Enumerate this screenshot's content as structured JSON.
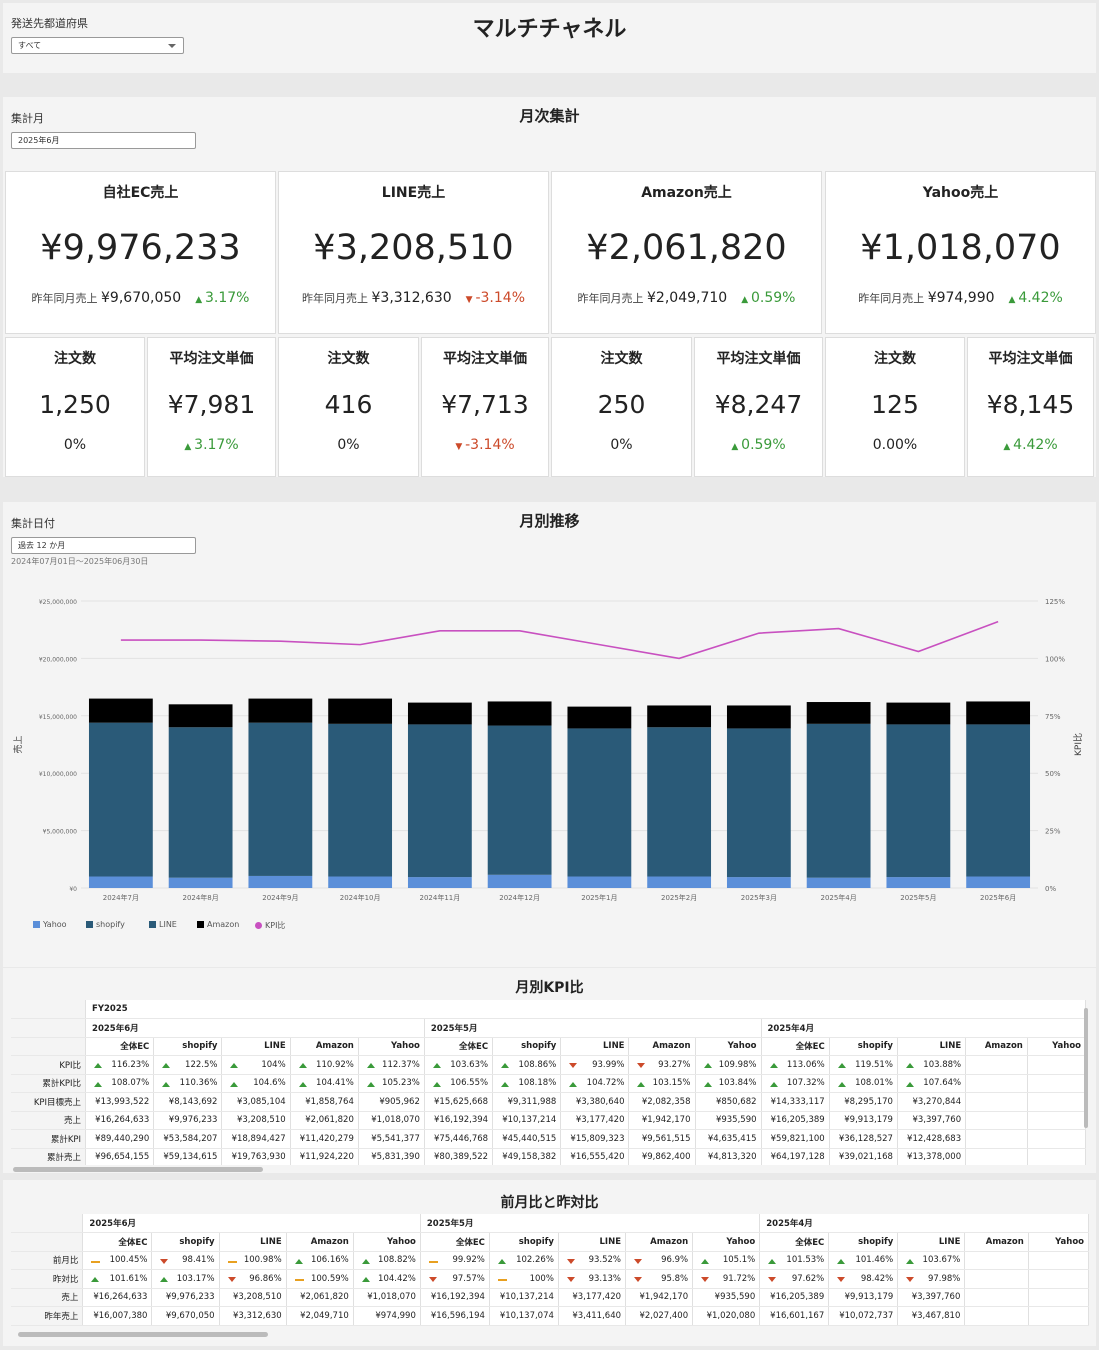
{
  "header": {
    "prefecture_label": "発送先都道府県",
    "prefecture_value": "すべて",
    "title": "マルチチャネル"
  },
  "monthly": {
    "title": "月次集計",
    "month_label": "集計月",
    "month_value": "2025年6月"
  },
  "cards": [
    {
      "title": "自社EC売上",
      "value": "¥9,976,233",
      "prev_label": "昨年同月売上",
      "prev_value": "¥9,670,050",
      "delta": "3.17%",
      "dir": "up"
    },
    {
      "title": "LINE売上",
      "value": "¥3,208,510",
      "prev_label": "昨年同月売上",
      "prev_value": "¥3,312,630",
      "delta": "-3.14%",
      "dir": "dn"
    },
    {
      "title": "Amazon売上",
      "value": "¥2,061,820",
      "prev_label": "昨年同月売上",
      "prev_value": "¥2,049,710",
      "delta": "0.59%",
      "dir": "up"
    },
    {
      "title": "Yahoo売上",
      "value": "¥1,018,070",
      "prev_label": "昨年同月売上",
      "prev_value": "¥974,990",
      "delta": "4.42%",
      "dir": "up"
    }
  ],
  "small_cards": [
    {
      "title": "注文数",
      "value": "1,250",
      "delta": "0%",
      "dir": "none"
    },
    {
      "title": "平均注文単価",
      "value": "¥7,981",
      "delta": "3.17%",
      "dir": "up"
    },
    {
      "title": "注文数",
      "value": "416",
      "delta": "0%",
      "dir": "none"
    },
    {
      "title": "平均注文単価",
      "value": "¥7,713",
      "delta": "-3.14%",
      "dir": "dn"
    },
    {
      "title": "注文数",
      "value": "250",
      "delta": "0%",
      "dir": "none"
    },
    {
      "title": "平均注文単価",
      "value": "¥8,247",
      "delta": "0.59%",
      "dir": "up"
    },
    {
      "title": "注文数",
      "value": "125",
      "delta": "0.00%",
      "dir": "none"
    },
    {
      "title": "平均注文単価",
      "value": "¥8,145",
      "delta": "4.42%",
      "dir": "up"
    }
  ],
  "trend": {
    "title": "月別推移",
    "date_label": "集計日付",
    "date_value": "過去 12 か月",
    "date_range": "2024年07月01日～2025年06月30日"
  },
  "chart_data": {
    "type": "bar",
    "categories": [
      "2024年7月",
      "2024年8月",
      "2024年9月",
      "2024年10月",
      "2024年11月",
      "2024年12月",
      "2025年1月",
      "2025年2月",
      "2025年3月",
      "2025年4月",
      "2025年5月",
      "2025年6月"
    ],
    "series": [
      {
        "name": "Yahoo",
        "color": "#5b8fd9",
        "values": [
          1000000,
          900000,
          1050000,
          1000000,
          950000,
          1150000,
          1000000,
          1000000,
          950000,
          900000,
          950000,
          1000000
        ]
      },
      {
        "name": "shopify",
        "color": "#2a5a78",
        "values": [
          13400000,
          13100000,
          13350000,
          13300000,
          13300000,
          13000000,
          12900000,
          13000000,
          12950000,
          13400000,
          13300000,
          13250000
        ]
      },
      {
        "name": "LINE",
        "color": "#2a5a78",
        "values": [
          0,
          0,
          0,
          0,
          0,
          0,
          0,
          0,
          0,
          0,
          0,
          0
        ]
      },
      {
        "name": "Amazon",
        "color": "#000000",
        "values": [
          2100000,
          2000000,
          2100000,
          2200000,
          1900000,
          2100000,
          1900000,
          1900000,
          2000000,
          1900000,
          1900000,
          2000000
        ]
      },
      {
        "name": "KPI比",
        "color": "#c850c0",
        "type": "line",
        "axis": "right",
        "values": [
          108,
          108,
          107.5,
          106,
          112,
          112,
          106,
          100,
          111,
          113,
          103,
          116
        ]
      }
    ],
    "yticks_left": [
      "¥25,000,000",
      "¥20,000,000",
      "¥15,000,000",
      "¥10,000,000",
      "¥5,000,000",
      "¥0"
    ],
    "yticks_right": [
      "125%",
      "100%",
      "75%",
      "50%",
      "25%",
      "0%"
    ],
    "ylim": [
      0,
      25000000
    ],
    "y2lim": [
      0,
      125
    ],
    "ylabel": "売上",
    "y2label": "KPI比",
    "legend": "bottom-left"
  },
  "kpi": {
    "title": "月別KPI比",
    "fy": "FY2025",
    "months": [
      "2025年6月",
      "2025年5月",
      "2025年4月"
    ],
    "cols": [
      "全体EC",
      "shopify",
      "LINE",
      "Amazon",
      "Yahoo"
    ],
    "rows": [
      {
        "label": "KPI比",
        "cells": [
          [
            "116.23%",
            "up"
          ],
          [
            "122.5%",
            "up"
          ],
          [
            "104%",
            "up"
          ],
          [
            "110.92%",
            "up"
          ],
          [
            "112.37%",
            "up"
          ],
          [
            "103.63%",
            "up"
          ],
          [
            "108.86%",
            "up"
          ],
          [
            "93.99%",
            "dn"
          ],
          [
            "93.27%",
            "dn"
          ],
          [
            "109.98%",
            "up"
          ],
          [
            "113.06%",
            "up"
          ],
          [
            "119.51%",
            "up"
          ],
          [
            "103.88%",
            "up"
          ]
        ]
      },
      {
        "label": "累計KPI比",
        "cells": [
          [
            "108.07%",
            "up"
          ],
          [
            "110.36%",
            "up"
          ],
          [
            "104.6%",
            "up"
          ],
          [
            "104.41%",
            "up"
          ],
          [
            "105.23%",
            "up"
          ],
          [
            "106.55%",
            "up"
          ],
          [
            "108.18%",
            "up"
          ],
          [
            "104.72%",
            "up"
          ],
          [
            "103.15%",
            "up"
          ],
          [
            "103.84%",
            "up"
          ],
          [
            "107.32%",
            "up"
          ],
          [
            "108.01%",
            "up"
          ],
          [
            "107.64%",
            "up"
          ]
        ]
      },
      {
        "label": "KPI目標売上",
        "cells": [
          [
            "¥13,993,522",
            ""
          ],
          [
            "¥8,143,692",
            ""
          ],
          [
            "¥3,085,104",
            ""
          ],
          [
            "¥1,858,764",
            ""
          ],
          [
            "¥905,962",
            ""
          ],
          [
            "¥15,625,668",
            ""
          ],
          [
            "¥9,311,988",
            ""
          ],
          [
            "¥3,380,640",
            ""
          ],
          [
            "¥2,082,358",
            ""
          ],
          [
            "¥850,682",
            ""
          ],
          [
            "¥14,333,117",
            ""
          ],
          [
            "¥8,295,170",
            ""
          ],
          [
            "¥3,270,844",
            ""
          ]
        ]
      },
      {
        "label": "売上",
        "cells": [
          [
            "¥16,264,633",
            ""
          ],
          [
            "¥9,976,233",
            ""
          ],
          [
            "¥3,208,510",
            ""
          ],
          [
            "¥2,061,820",
            ""
          ],
          [
            "¥1,018,070",
            ""
          ],
          [
            "¥16,192,394",
            ""
          ],
          [
            "¥10,137,214",
            ""
          ],
          [
            "¥3,177,420",
            ""
          ],
          [
            "¥1,942,170",
            ""
          ],
          [
            "¥935,590",
            ""
          ],
          [
            "¥16,205,389",
            ""
          ],
          [
            "¥9,913,179",
            ""
          ],
          [
            "¥3,397,760",
            ""
          ]
        ]
      },
      {
        "label": "累計KPI",
        "cells": [
          [
            "¥89,440,290",
            ""
          ],
          [
            "¥53,584,207",
            ""
          ],
          [
            "¥18,894,427",
            ""
          ],
          [
            "¥11,420,279",
            ""
          ],
          [
            "¥5,541,377",
            ""
          ],
          [
            "¥75,446,768",
            ""
          ],
          [
            "¥45,440,515",
            ""
          ],
          [
            "¥15,809,323",
            ""
          ],
          [
            "¥9,561,515",
            ""
          ],
          [
            "¥4,635,415",
            ""
          ],
          [
            "¥59,821,100",
            ""
          ],
          [
            "¥36,128,527",
            ""
          ],
          [
            "¥12,428,683",
            ""
          ]
        ]
      },
      {
        "label": "累計売上",
        "cells": [
          [
            "¥96,654,155",
            ""
          ],
          [
            "¥59,134,615",
            ""
          ],
          [
            "¥19,763,930",
            ""
          ],
          [
            "¥11,924,220",
            ""
          ],
          [
            "¥5,831,390",
            ""
          ],
          [
            "¥80,389,522",
            ""
          ],
          [
            "¥49,158,382",
            ""
          ],
          [
            "¥16,555,420",
            ""
          ],
          [
            "¥9,862,400",
            ""
          ],
          [
            "¥4,813,320",
            ""
          ],
          [
            "¥64,197,128",
            ""
          ],
          [
            "¥39,021,168",
            ""
          ],
          [
            "¥13,378,000",
            ""
          ]
        ]
      }
    ]
  },
  "yoy": {
    "title": "前月比と昨対比",
    "months": [
      "2025年6月",
      "2025年5月",
      "2025年4月"
    ],
    "cols": [
      "全体EC",
      "shopify",
      "LINE",
      "Amazon",
      "Yahoo"
    ],
    "rows": [
      {
        "label": "前月比",
        "cells": [
          [
            "100.45%",
            "fl"
          ],
          [
            "98.41%",
            "dn"
          ],
          [
            "100.98%",
            "fl"
          ],
          [
            "106.16%",
            "up"
          ],
          [
            "108.82%",
            "up"
          ],
          [
            "99.92%",
            "fl"
          ],
          [
            "102.26%",
            "up"
          ],
          [
            "93.52%",
            "dn"
          ],
          [
            "96.9%",
            "dn"
          ],
          [
            "105.1%",
            "up"
          ],
          [
            "101.53%",
            "up"
          ],
          [
            "101.46%",
            "up"
          ],
          [
            "103.67%",
            "up"
          ]
        ]
      },
      {
        "label": "昨対比",
        "cells": [
          [
            "101.61%",
            "up"
          ],
          [
            "103.17%",
            "up"
          ],
          [
            "96.86%",
            "dn"
          ],
          [
            "100.59%",
            "fl"
          ],
          [
            "104.42%",
            "up"
          ],
          [
            "97.57%",
            "dn"
          ],
          [
            "100%",
            "fl"
          ],
          [
            "93.13%",
            "dn"
          ],
          [
            "95.8%",
            "dn"
          ],
          [
            "91.72%",
            "dn"
          ],
          [
            "97.62%",
            "dn"
          ],
          [
            "98.42%",
            "dn"
          ],
          [
            "97.98%",
            "dn"
          ]
        ]
      },
      {
        "label": "売上",
        "cells": [
          [
            "¥16,264,633",
            ""
          ],
          [
            "¥9,976,233",
            ""
          ],
          [
            "¥3,208,510",
            ""
          ],
          [
            "¥2,061,820",
            ""
          ],
          [
            "¥1,018,070",
            ""
          ],
          [
            "¥16,192,394",
            ""
          ],
          [
            "¥10,137,214",
            ""
          ],
          [
            "¥3,177,420",
            ""
          ],
          [
            "¥1,942,170",
            ""
          ],
          [
            "¥935,590",
            ""
          ],
          [
            "¥16,205,389",
            ""
          ],
          [
            "¥9,913,179",
            ""
          ],
          [
            "¥3,397,760",
            ""
          ]
        ]
      },
      {
        "label": "昨年売上",
        "cells": [
          [
            "¥16,007,380",
            ""
          ],
          [
            "¥9,670,050",
            ""
          ],
          [
            "¥3,312,630",
            ""
          ],
          [
            "¥2,049,710",
            ""
          ],
          [
            "¥974,990",
            ""
          ],
          [
            "¥16,596,194",
            ""
          ],
          [
            "¥10,137,074",
            ""
          ],
          [
            "¥3,411,640",
            ""
          ],
          [
            "¥2,027,400",
            ""
          ],
          [
            "¥1,020,080",
            ""
          ],
          [
            "¥16,601,167",
            ""
          ],
          [
            "¥10,072,737",
            ""
          ],
          [
            "¥3,467,810",
            ""
          ]
        ]
      }
    ]
  }
}
